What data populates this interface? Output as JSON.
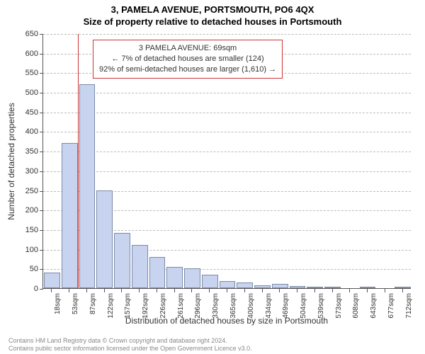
{
  "title1": "3, PAMELA AVENUE, PORTSMOUTH, PO6 4QX",
  "title2": "Size of property relative to detached houses in Portsmouth",
  "chart": {
    "type": "histogram",
    "ylabel": "Number of detached properties",
    "xlabel": "Distribution of detached houses by size in Portsmouth",
    "ylim": [
      0,
      650
    ],
    "ytick_step": 50,
    "background_color": "#ffffff",
    "grid_color": "#bbbbbb",
    "axis_color": "#555555",
    "bar_fill": "#c8d4ef",
    "bar_border": "#7a8aa8",
    "reference_line_color": "#cc3333",
    "categories": [
      "18sqm",
      "53sqm",
      "87sqm",
      "122sqm",
      "157sqm",
      "192sqm",
      "226sqm",
      "261sqm",
      "296sqm",
      "330sqm",
      "365sqm",
      "400sqm",
      "434sqm",
      "469sqm",
      "504sqm",
      "539sqm",
      "573sqm",
      "608sqm",
      "643sqm",
      "677sqm",
      "712sqm"
    ],
    "values": [
      40,
      370,
      520,
      250,
      140,
      110,
      80,
      55,
      50,
      35,
      18,
      14,
      8,
      10,
      6,
      4,
      3,
      0,
      3,
      0,
      2
    ],
    "reference_value_sqm": 69,
    "annotation": {
      "line1": "3 PAMELA AVENUE: 69sqm",
      "line2": "← 7% of detached houses are smaller (124)",
      "line3": "92% of semi-detached houses are larger (1,610) →"
    },
    "label_fontsize": 12,
    "tick_fontsize": 11,
    "xtick_fontsize": 10,
    "title_fontsize": 13
  },
  "footer": {
    "line1": "Contains HM Land Registry data © Crown copyright and database right 2024.",
    "line2": "Contains public sector information licensed under the Open Government Licence v3.0."
  }
}
